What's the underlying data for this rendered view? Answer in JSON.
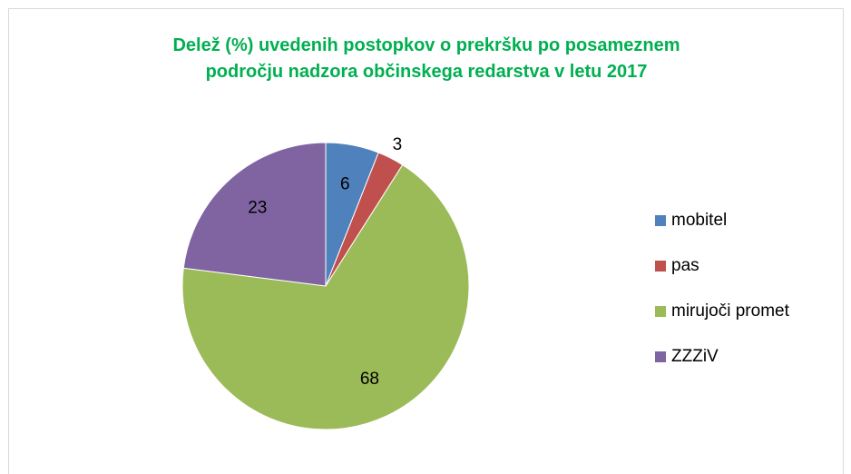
{
  "chart_data": {
    "type": "pie",
    "title": "Delež (%) uvedenih postopkov o prekršku po posameznem področju nadzora občinskega redarstva v letu 2017",
    "categories": [
      "mobitel",
      "pas",
      "mirujoči promet",
      "ZZZiV"
    ],
    "values": [
      6,
      3,
      68,
      23
    ],
    "colors": [
      "#4f81bd",
      "#c0504d",
      "#9bbb59",
      "#8064a2"
    ],
    "legend": "right"
  }
}
